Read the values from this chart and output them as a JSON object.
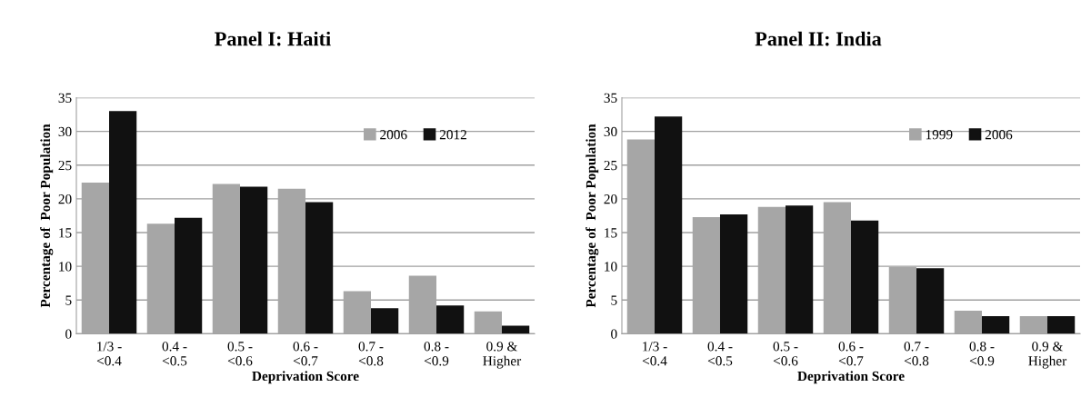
{
  "chart_data": [
    {
      "type": "bar",
      "title": "Panel I: Haiti",
      "xlabel": "Deprivation Score",
      "ylabel": "Percentage of  Poor Population",
      "categories": [
        "1/3 -\n<0.4",
        "0.4 -\n<0.5",
        "0.5 -\n<0.6",
        "0.6 -\n<0.7",
        "0.7 -\n<0.8",
        "0.8 -\n<0.9",
        "0.9 &\nHigher"
      ],
      "series": [
        {
          "name": "2006",
          "color": "#a6a6a6",
          "values": [
            22.4,
            16.3,
            22.2,
            21.5,
            6.3,
            8.6,
            3.3
          ]
        },
        {
          "name": "2012",
          "color": "#111111",
          "values": [
            33.0,
            17.2,
            21.8,
            19.5,
            3.8,
            4.2,
            1.2
          ]
        }
      ],
      "ylim": [
        0,
        35
      ],
      "yticks": [
        0,
        5,
        10,
        15,
        20,
        25,
        30,
        35
      ],
      "grid": "y",
      "legend": "top right"
    },
    {
      "type": "bar",
      "title": "Panel II: India",
      "xlabel": "Deprivation Score",
      "ylabel": "Percentage of  Poor Population",
      "categories": [
        "1/3 -\n<0.4",
        "0.4 -\n<0.5",
        "0.5 -\n<0.6",
        "0.6 -\n<0.7",
        "0.7 -\n<0.8",
        "0.8 -\n<0.9",
        "0.9 &\nHigher"
      ],
      "series": [
        {
          "name": "1999",
          "color": "#a6a6a6",
          "values": [
            28.8,
            17.3,
            18.8,
            19.5,
            9.9,
            3.4,
            2.6
          ]
        },
        {
          "name": "2006",
          "color": "#111111",
          "values": [
            32.2,
            17.7,
            19.0,
            16.8,
            9.7,
            2.6,
            2.6
          ]
        }
      ],
      "ylim": [
        0,
        35
      ],
      "yticks": [
        0,
        5,
        10,
        15,
        20,
        25,
        30,
        35
      ],
      "grid": "y",
      "legend": "top right"
    }
  ]
}
